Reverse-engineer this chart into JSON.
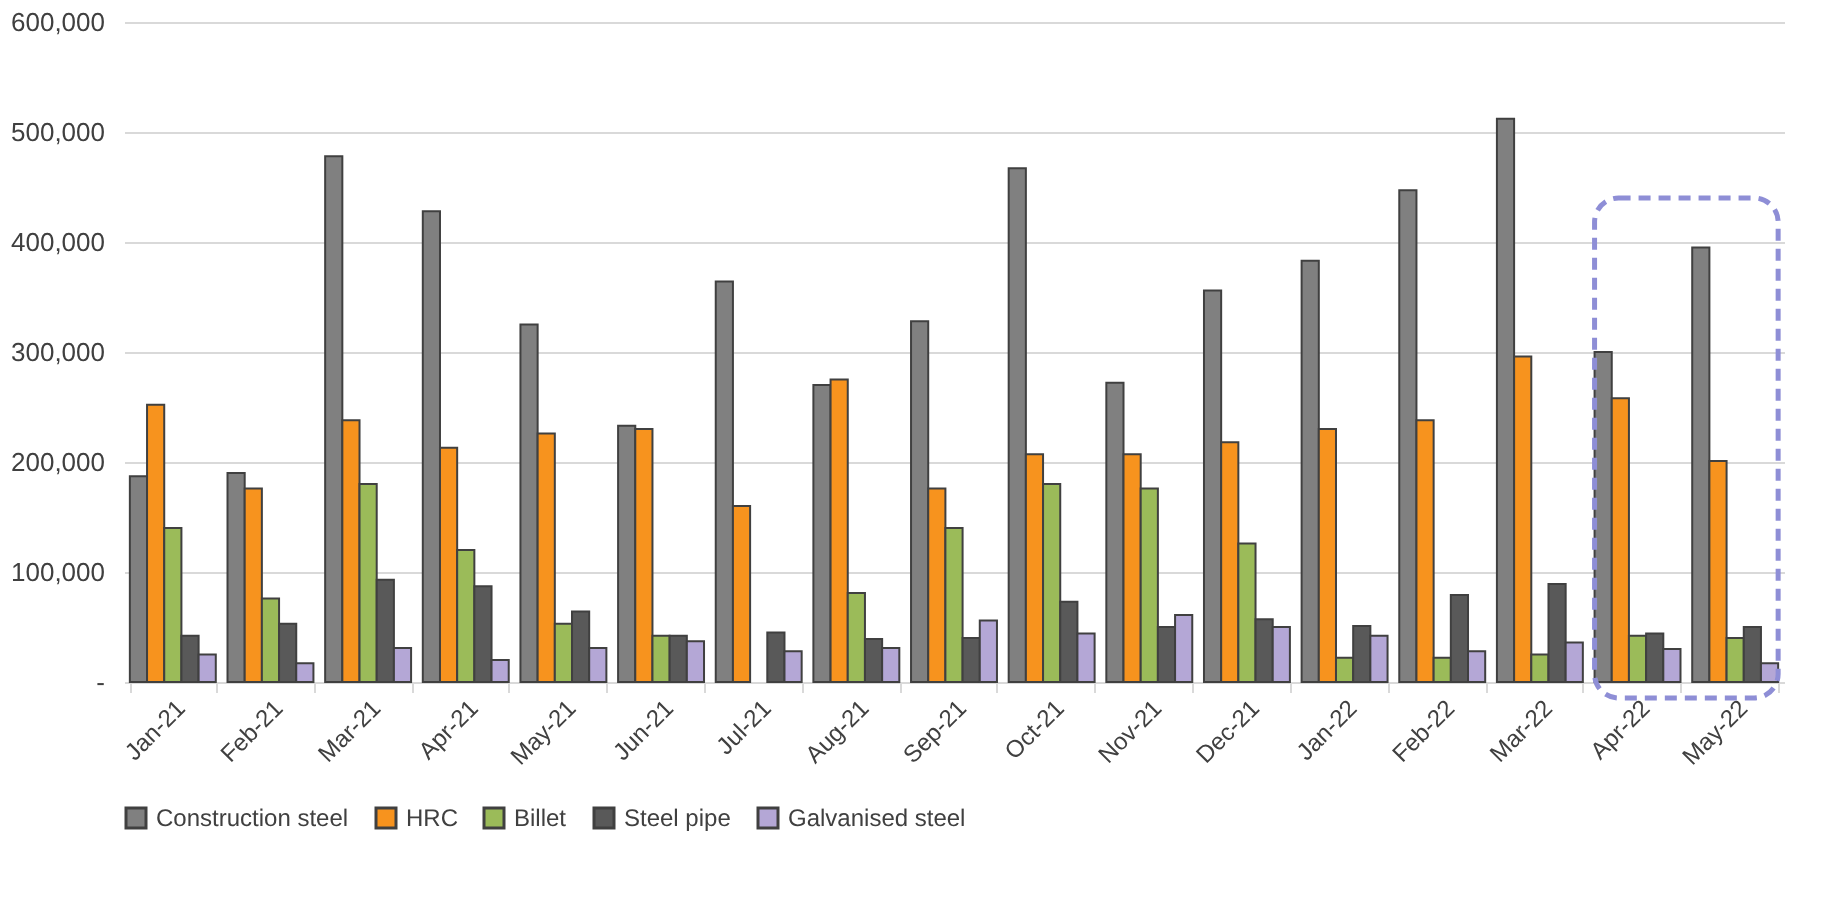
{
  "chart_data": {
    "type": "bar",
    "categories": [
      "Jan-21",
      "Feb-21",
      "Mar-21",
      "Apr-21",
      "May-21",
      "Jun-21",
      "Jul-21",
      "Aug-21",
      "Sep-21",
      "Oct-21",
      "Nov-21",
      "Dec-21",
      "Jan-22",
      "Feb-22",
      "Mar-22",
      "Apr-22",
      "May-22"
    ],
    "series": [
      {
        "name": "Construction steel",
        "color": "#808080",
        "values": [
          187000,
          190000,
          478000,
          428000,
          325000,
          233000,
          364000,
          270000,
          328000,
          467000,
          272000,
          356000,
          383000,
          447000,
          512000,
          300000,
          395000
        ]
      },
      {
        "name": "HRC",
        "color": "#f7931e",
        "values": [
          252000,
          176000,
          238000,
          213000,
          226000,
          230000,
          160000,
          275000,
          176000,
          207000,
          207000,
          218000,
          230000,
          238000,
          296000,
          258000,
          201000
        ]
      },
      {
        "name": "Billet",
        "color": "#9bbb59",
        "values": [
          140000,
          76000,
          180000,
          120000,
          53000,
          42000,
          null,
          81000,
          140000,
          180000,
          176000,
          126000,
          22000,
          22000,
          25000,
          42000,
          40000
        ]
      },
      {
        "name": "Steel pipe",
        "color": "#595959",
        "values": [
          42000,
          53000,
          93000,
          87000,
          64000,
          42000,
          45000,
          39000,
          40000,
          73000,
          50000,
          57000,
          51000,
          79000,
          89000,
          44000,
          50000
        ]
      },
      {
        "name": "Galvanised steel",
        "color": "#b4a7d6",
        "values": [
          25000,
          17000,
          31000,
          20000,
          31000,
          37000,
          28000,
          31000,
          56000,
          44000,
          61000,
          50000,
          42000,
          28000,
          36000,
          30000,
          17000
        ]
      }
    ],
    "ylim": [
      0,
      600000
    ],
    "yticks": [
      {
        "value": 0,
        "label": "-"
      },
      {
        "value": 100000,
        "label": "100,000"
      },
      {
        "value": 200000,
        "label": "200,000"
      },
      {
        "value": 300000,
        "label": "300,000"
      },
      {
        "value": 400000,
        "label": "400,000"
      },
      {
        "value": 500000,
        "label": "500,000"
      },
      {
        "value": 600000,
        "label": "600,000"
      }
    ],
    "grid": "y",
    "legend": "bottom"
  }
}
